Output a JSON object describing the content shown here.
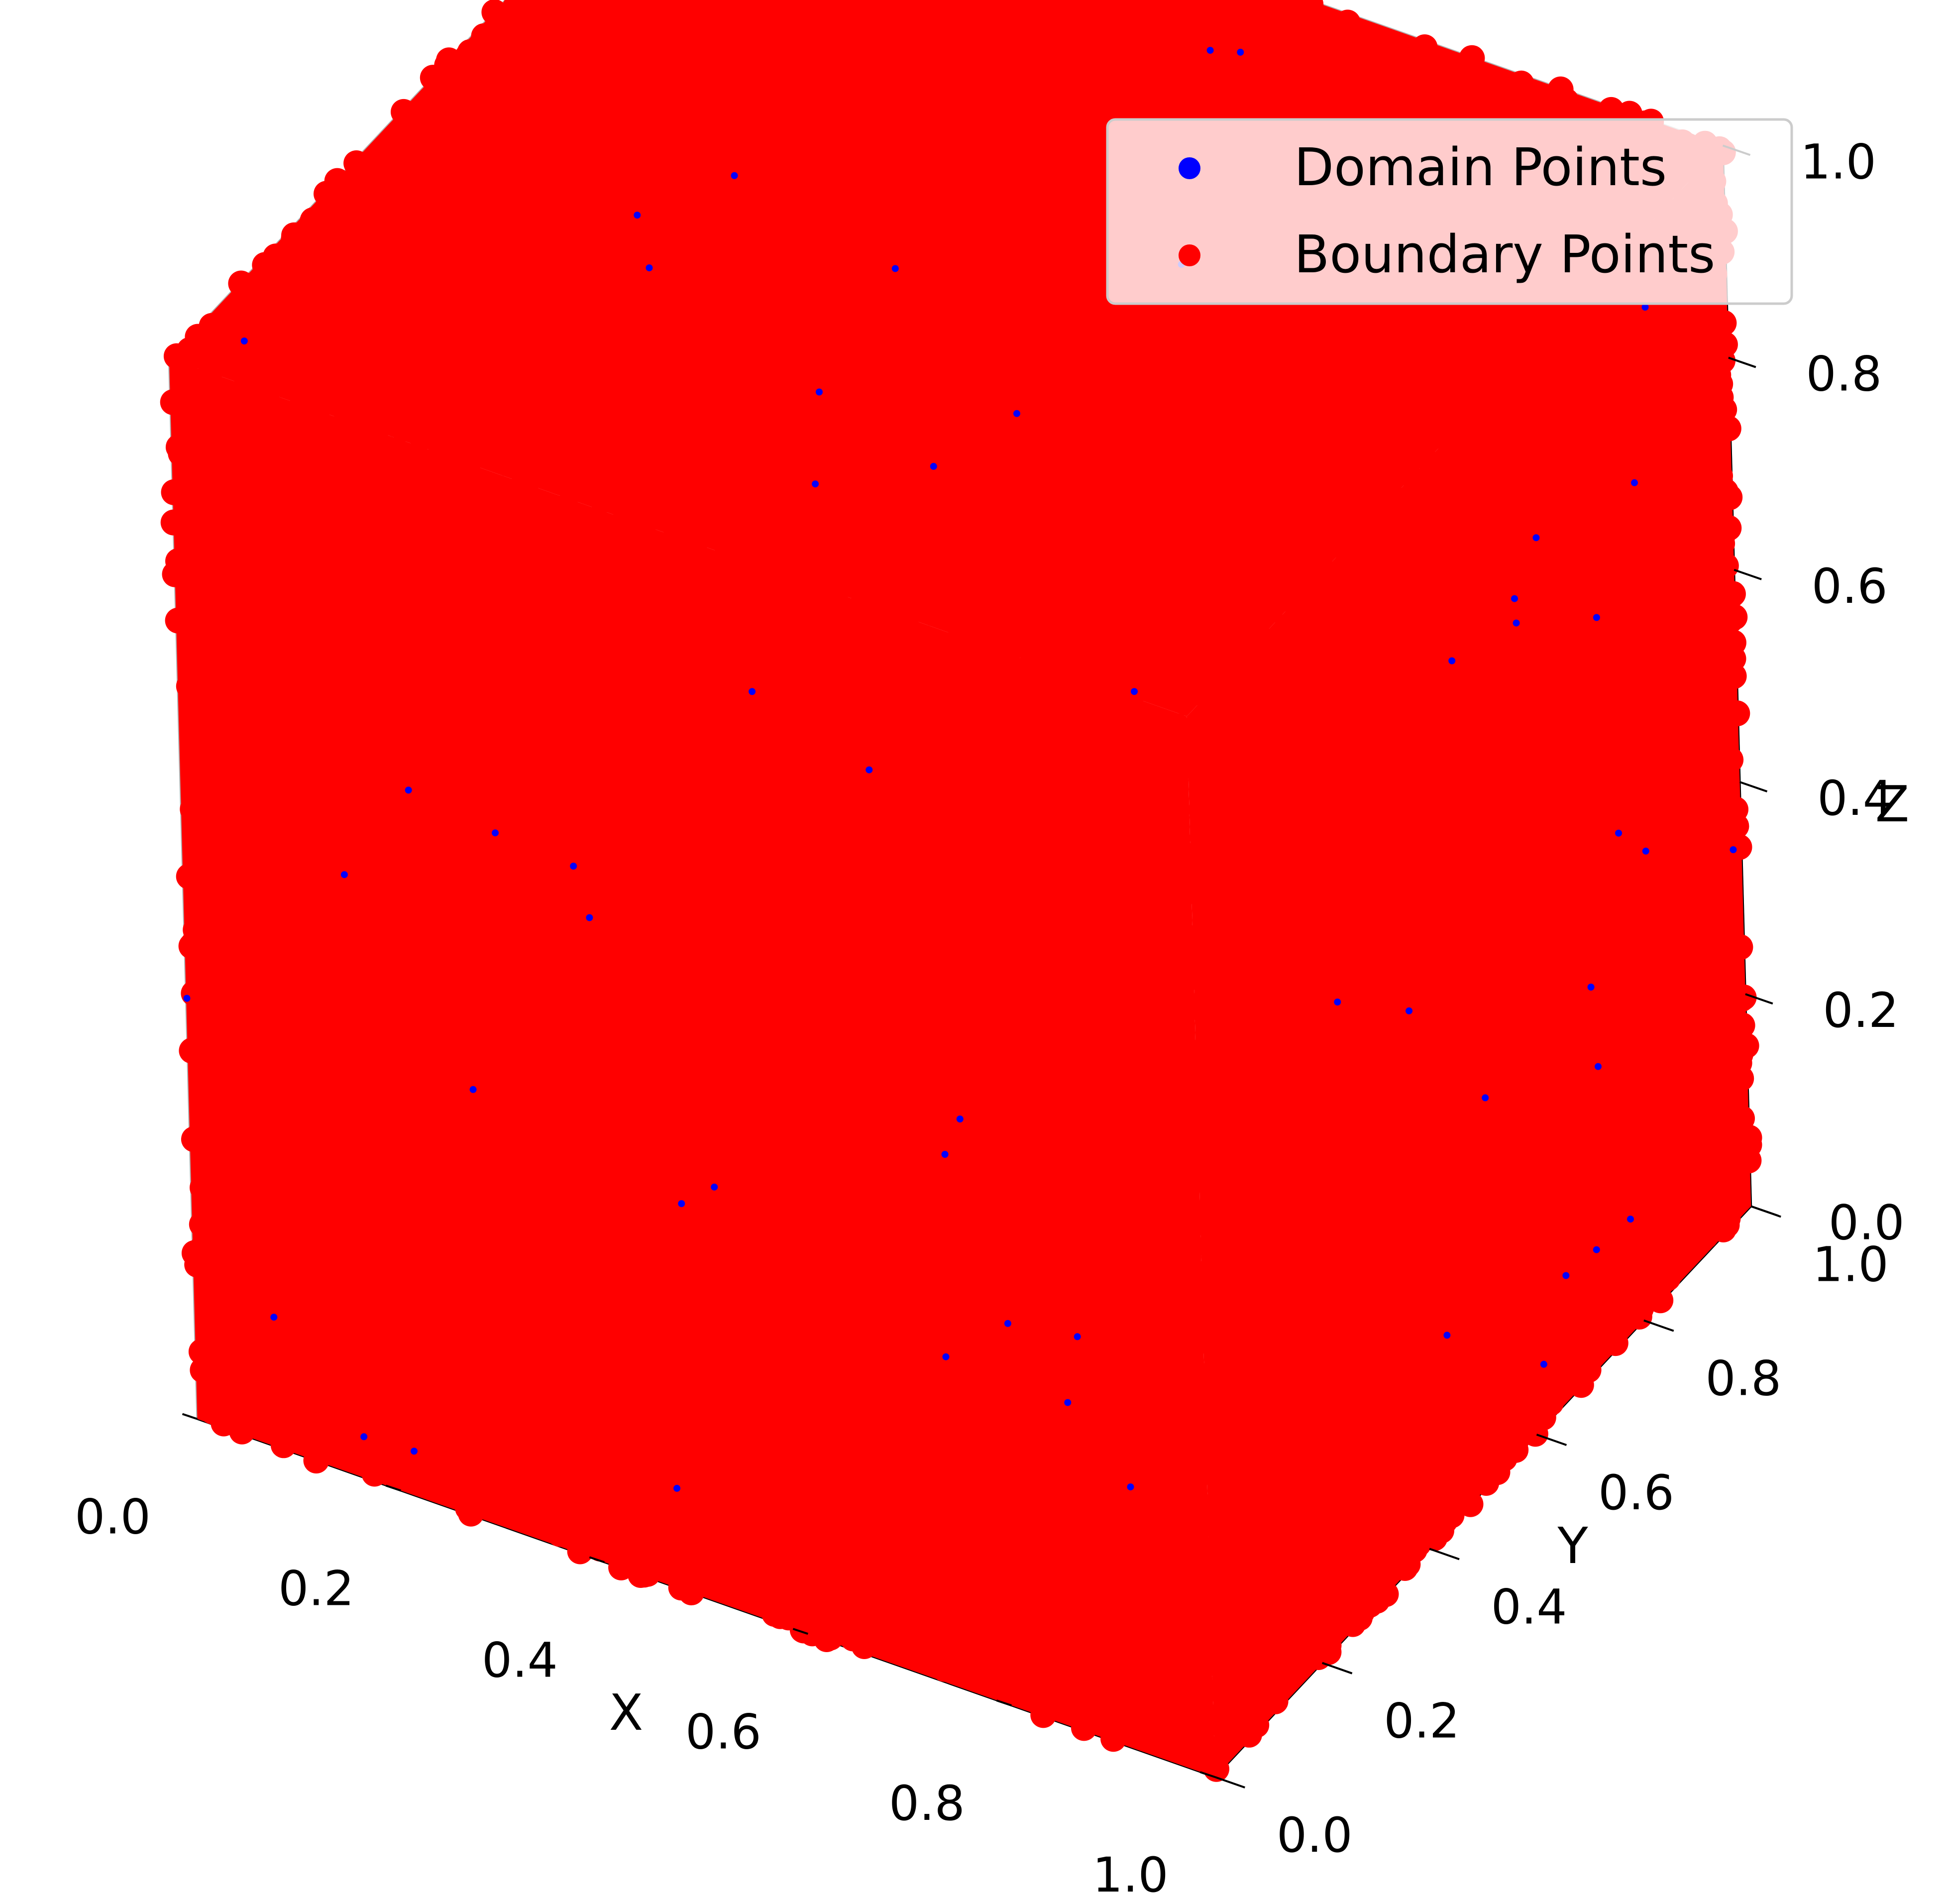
{
  "chart_data": {
    "type": "scatter",
    "projection": "3d",
    "xlabel": "X",
    "ylabel": "Y",
    "zlabel": "Z",
    "xlim": [
      0.0,
      1.0
    ],
    "ylim": [
      0.0,
      1.0
    ],
    "zlim": [
      0.0,
      1.0
    ],
    "xticks": [
      "0.0",
      "0.2",
      "0.4",
      "0.6",
      "0.8",
      "1.0"
    ],
    "yticks": [
      "0.0",
      "0.2",
      "0.4",
      "0.6",
      "0.8",
      "1.0"
    ],
    "zticks": [
      "0.0",
      "0.2",
      "0.4",
      "0.6",
      "0.8",
      "1.0"
    ],
    "grid": true,
    "legend_position": "upper right",
    "series": [
      {
        "name": "Domain Points",
        "color": "#0000ff",
        "region": "interior of unit cube",
        "x_range": [
          0,
          1
        ],
        "y_range": [
          0,
          1
        ],
        "z_range": [
          0,
          1
        ]
      },
      {
        "name": "Boundary Points",
        "color": "#ff0000",
        "region": "faces of unit cube",
        "x_range": [
          0,
          1
        ],
        "y_range": [
          0,
          1
        ],
        "z_range": [
          0,
          1
        ]
      }
    ]
  }
}
